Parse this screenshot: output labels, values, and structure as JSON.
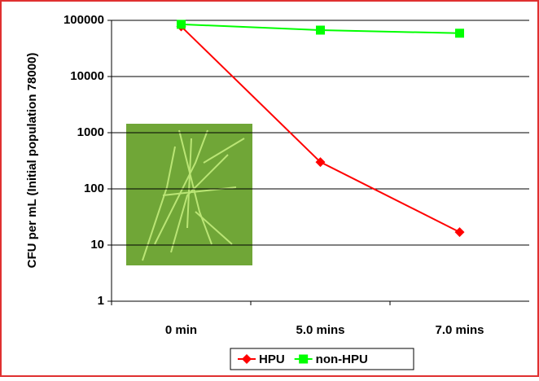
{
  "chart_data": {
    "type": "line",
    "y_label": "CFU per mL (Initial population 78000)",
    "categories": [
      "0 min",
      "5.0 mins",
      "7.0 mins"
    ],
    "series": [
      {
        "name": "HPU",
        "color": "#ff0000",
        "marker": "diamond",
        "values": [
          78000,
          300,
          17
        ]
      },
      {
        "name": "non-HPU",
        "color": "#00ff00",
        "marker": "square",
        "values": [
          85000,
          67000,
          59000
        ]
      }
    ],
    "ylim": [
      1,
      100000
    ],
    "yticks": [
      1,
      10,
      100,
      1000,
      10000,
      100000
    ],
    "log_y": true,
    "grid": true,
    "legend": "bottom"
  }
}
